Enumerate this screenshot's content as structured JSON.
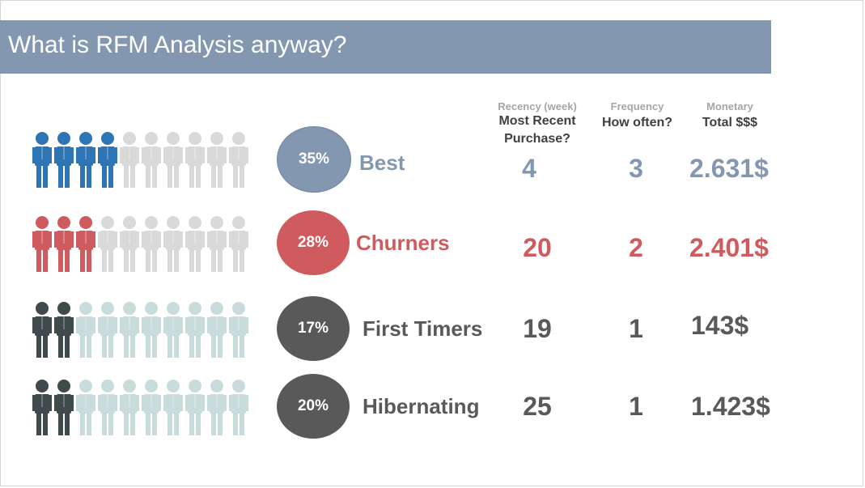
{
  "title": "What is RFM Analysis anyway?",
  "columns": [
    {
      "small": "Recency (week)",
      "big": "Most Recent Purchase?"
    },
    {
      "small": "Frequency",
      "big": "How often?"
    },
    {
      "small": "Monetary",
      "big": "Total $$$"
    }
  ],
  "colors": {
    "title_bar": "#8497b0",
    "best": "#8497b0",
    "best_icon": "#2e75b6",
    "churners": "#d05b5e",
    "dark": "#595959",
    "dark_icon": "#3f4a4c",
    "light_icon": "#d9d9d9",
    "light_teal_icon": "#c9dcdc"
  },
  "segments": [
    {
      "percent": "35%",
      "label": "Best",
      "recency": "4",
      "frequency": "3",
      "monetary": "2.631$",
      "highlighted_icons": 4,
      "total_icons": 10
    },
    {
      "percent": "28%",
      "label": "Churners",
      "recency": "20",
      "frequency": "2",
      "monetary": "2.401$",
      "highlighted_icons": 3,
      "total_icons": 10
    },
    {
      "percent": "17%",
      "label": "First Timers",
      "recency": "19",
      "frequency": "1",
      "monetary": "143$",
      "highlighted_icons": 2,
      "total_icons": 10
    },
    {
      "percent": "20%",
      "label": "Hibernating",
      "recency": "25",
      "frequency": "1",
      "monetary": "1.423$",
      "highlighted_icons": 2,
      "total_icons": 10
    }
  ]
}
